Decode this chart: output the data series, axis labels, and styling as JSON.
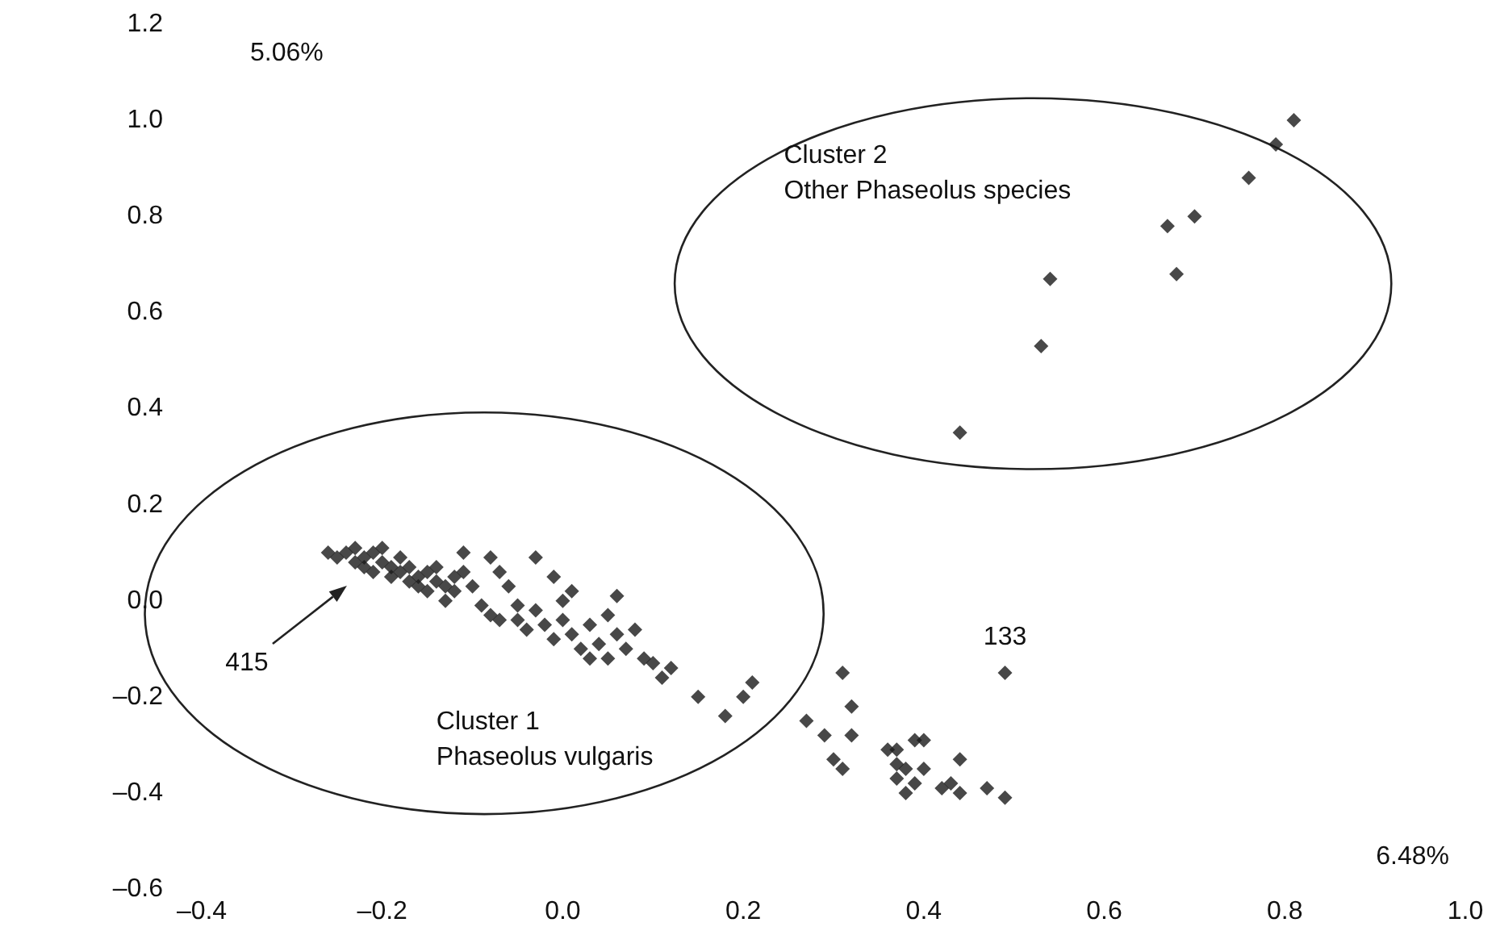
{
  "chart_data": {
    "type": "scatter",
    "xlabel": "6.48%",
    "ylabel": "5.06%",
    "marker": "diamond",
    "grid": false,
    "xlim": [
      -0.4,
      1.0
    ],
    "ylim": [
      -0.6,
      1.2
    ],
    "xticks": [
      {
        "value": -0.4,
        "label": "–0.4"
      },
      {
        "value": -0.2,
        "label": "–0.2"
      },
      {
        "value": 0,
        "label": "0.0"
      },
      {
        "value": 0.2,
        "label": "0.2"
      },
      {
        "value": 0.4,
        "label": "0.4"
      },
      {
        "value": 0.6,
        "label": "0.6"
      },
      {
        "value": 0.8,
        "label": "0.8"
      },
      {
        "value": 1.0,
        "label": "1.0"
      }
    ],
    "yticks": [
      {
        "value": -0.6,
        "label": "–0.6"
      },
      {
        "value": -0.4,
        "label": "–0.4"
      },
      {
        "value": -0.2,
        "label": "–0.2"
      },
      {
        "value": 0,
        "label": "0.0"
      },
      {
        "value": 0.2,
        "label": "0.2"
      },
      {
        "value": 0.4,
        "label": "0.4"
      },
      {
        "value": 0.6,
        "label": "0.6"
      },
      {
        "value": 0.8,
        "label": "0.8"
      },
      {
        "value": 1.0,
        "label": "1.0"
      },
      {
        "value": 1.2,
        "label": "1.2"
      }
    ],
    "series": [
      {
        "color": "#1a1a1a",
        "x": [
          -0.26,
          -0.25,
          -0.24,
          -0.23,
          -0.23,
          -0.22,
          -0.22,
          -0.21,
          -0.21,
          -0.2,
          -0.2,
          -0.19,
          -0.19,
          -0.18,
          -0.18,
          -0.17,
          -0.17,
          -0.16,
          -0.16,
          -0.15,
          -0.15,
          -0.14,
          -0.14,
          -0.13,
          -0.13,
          -0.12,
          -0.12,
          -0.11,
          -0.11,
          -0.1,
          -0.09,
          -0.08,
          -0.07,
          -0.08,
          -0.07,
          -0.06,
          -0.05,
          -0.05,
          -0.04,
          -0.03,
          -0.03,
          -0.02,
          -0.01,
          -0.01,
          0.0,
          0.0,
          0.01,
          0.01,
          0.02,
          0.03,
          0.03,
          0.04,
          0.05,
          0.05,
          0.06,
          0.06,
          0.07,
          0.08,
          0.09,
          0.1,
          0.11,
          0.12,
          0.15,
          0.18,
          0.2,
          0.21,
          0.27,
          0.29,
          0.3,
          0.31,
          0.31,
          0.32,
          0.32,
          0.36,
          0.37,
          0.37,
          0.37,
          0.38,
          0.38,
          0.39,
          0.39,
          0.4,
          0.4,
          0.42,
          0.43,
          0.44,
          0.44,
          0.47,
          0.49,
          0.49
        ],
        "values": [
          0.1,
          0.09,
          0.1,
          0.08,
          0.11,
          0.09,
          0.07,
          0.1,
          0.06,
          0.08,
          0.11,
          0.07,
          0.05,
          0.09,
          0.06,
          0.04,
          0.07,
          0.05,
          0.03,
          0.06,
          0.02,
          0.04,
          0.07,
          0.03,
          0.0,
          0.05,
          0.02,
          0.1,
          0.06,
          0.03,
          -0.01,
          0.09,
          0.06,
          -0.03,
          -0.04,
          0.03,
          -0.04,
          -0.01,
          -0.06,
          -0.02,
          0.09,
          -0.05,
          0.05,
          -0.08,
          0.0,
          -0.04,
          -0.07,
          0.02,
          -0.1,
          -0.05,
          -0.12,
          -0.09,
          -0.03,
          -0.12,
          0.01,
          -0.07,
          -0.1,
          -0.06,
          -0.12,
          -0.13,
          -0.16,
          -0.14,
          -0.2,
          -0.24,
          -0.2,
          -0.17,
          -0.25,
          -0.28,
          -0.33,
          -0.15,
          -0.35,
          -0.22,
          -0.28,
          -0.31,
          -0.31,
          -0.34,
          -0.37,
          -0.35,
          -0.4,
          -0.29,
          -0.38,
          -0.29,
          -0.35,
          -0.39,
          -0.38,
          -0.33,
          -0.4,
          -0.39,
          -0.41,
          -0.15
        ]
      },
      {
        "color": "#1a1a1a",
        "x": [
          0.44,
          0.53,
          0.54,
          0.68,
          0.67,
          0.7,
          0.76,
          0.79,
          0.81
        ],
        "values": [
          0.35,
          0.53,
          0.67,
          0.68,
          0.78,
          0.8,
          0.88,
          0.95,
          1.0
        ]
      }
    ],
    "annotations": [
      {
        "text": "133",
        "x": 0.49,
        "y": -0.15
      },
      "415",
      "Cluster 1 Phaseolus vulgaris",
      "Cluster 2 Other Phaseolus species"
    ]
  }
}
